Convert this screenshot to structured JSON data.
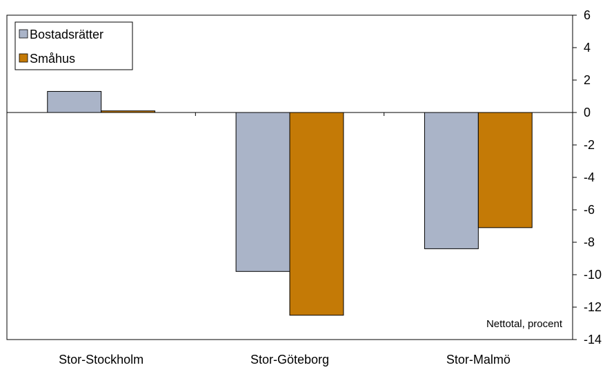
{
  "chart_data": {
    "type": "bar",
    "categories": [
      "Stor-Stockholm",
      "Stor-Göteborg",
      "Stor-Malmö"
    ],
    "series": [
      {
        "name": "Bostadsrätter",
        "values": [
          1.3,
          -9.8,
          -8.4
        ],
        "color": "#aab4c8"
      },
      {
        "name": "Småhus",
        "values": [
          0.1,
          -12.5,
          -7.1
        ],
        "color": "#c47a06"
      }
    ],
    "ylim": [
      -14,
      6
    ],
    "yticks": [
      6,
      4,
      2,
      0,
      -2,
      -4,
      -6,
      -8,
      -10,
      -12,
      -14
    ],
    "y_axis_side": "right",
    "grid": false,
    "legend_position": "top-left",
    "annotation": "Nettotal, procent",
    "title": "",
    "xlabel": "",
    "ylabel": ""
  }
}
